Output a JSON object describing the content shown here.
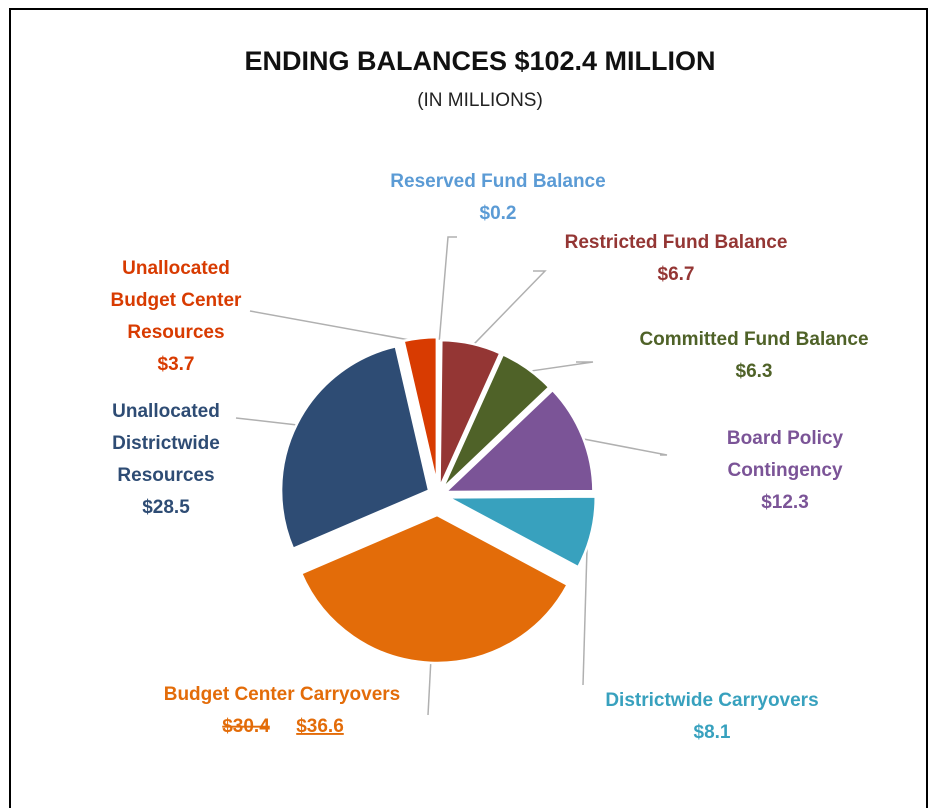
{
  "chart_data": {
    "type": "pie",
    "title": "ENDING BALANCES $102.4 MILLION",
    "subtitle": "(IN MILLIONS)",
    "slices": [
      {
        "label": [
          "Reserved Fund Balance"
        ],
        "value": 0.2,
        "value_label": "$0.2",
        "color": "#5B9BD5"
      },
      {
        "label": [
          "Restricted Fund Balance"
        ],
        "value": 6.7,
        "value_label": "$6.7",
        "color": "#943634"
      },
      {
        "label": [
          "Committed Fund Balance"
        ],
        "value": 6.3,
        "value_label": "$6.3",
        "color": "#4F6228"
      },
      {
        "label": [
          "Board Policy",
          "Contingency"
        ],
        "value": 12.3,
        "value_label": "$12.3",
        "color": "#7B5497"
      },
      {
        "label": [
          "Districtwide Carryovers"
        ],
        "value": 8.1,
        "value_label": "$8.1",
        "color": "#38A1BE"
      },
      {
        "label": [
          "Budget Center Carryovers"
        ],
        "value": 36.6,
        "value_label": "$36.6",
        "struck_label": "$30.4",
        "color": "#E36C09"
      },
      {
        "label": [
          "Unallocated",
          "Districtwide",
          "Resources"
        ],
        "value": 28.5,
        "value_label": "$28.5",
        "color": "#2E4C74"
      },
      {
        "label": [
          "Unallocated",
          "Budget Center",
          "Resources"
        ],
        "value": 3.7,
        "value_label": "$3.7",
        "color": "#D83B01"
      }
    ]
  }
}
